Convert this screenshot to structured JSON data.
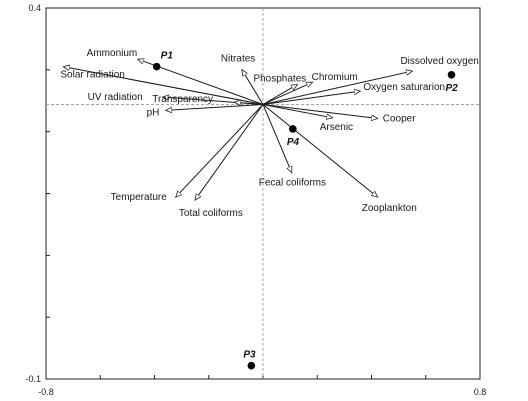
{
  "chart_data": {
    "type": "scatter",
    "title": "",
    "xlabel": "",
    "ylabel": "",
    "xlim": [
      -0.8,
      0.8
    ],
    "ylim": [
      -0.1,
      0.4
    ],
    "x_tick_labels": [
      "-0.8",
      "0.8"
    ],
    "y_tick_labels": [
      "0.4",
      "-0.1"
    ],
    "grid": false,
    "legend": "none",
    "reference_lines": {
      "x": 0.0,
      "y": 0.27
    },
    "vectors": [
      {
        "name": "Dissolved oxygen",
        "x": 0.551,
        "y": 0.315
      },
      {
        "name": "Oxygen saturarion",
        "x": 0.359,
        "y": 0.288
      },
      {
        "name": "Chromium",
        "x": 0.183,
        "y": 0.3
      },
      {
        "name": "Phosphates",
        "x": 0.127,
        "y": 0.297
      },
      {
        "name": "Nitrates",
        "x": -0.078,
        "y": 0.317
      },
      {
        "name": "Ammonium",
        "x": -0.462,
        "y": 0.331
      },
      {
        "name": "Solar radiation",
        "x": -0.736,
        "y": 0.321
      },
      {
        "name": "UV radiation",
        "x": -0.37,
        "y": 0.28
      },
      {
        "name": "Transparency",
        "x": -0.106,
        "y": 0.273
      },
      {
        "name": "pH",
        "x": -0.359,
        "y": 0.262
      },
      {
        "name": "Arsenic",
        "x": 0.257,
        "y": 0.252
      },
      {
        "name": "Cooper",
        "x": 0.423,
        "y": 0.251
      },
      {
        "name": "Fecal coliforms",
        "x": 0.106,
        "y": 0.178
      },
      {
        "name": "Zooplankton",
        "x": 0.423,
        "y": 0.145
      },
      {
        "name": "Temperature",
        "x": -0.322,
        "y": 0.145
      },
      {
        "name": "Total  coliforms",
        "x": -0.251,
        "y": 0.141
      }
    ],
    "points": [
      {
        "name": "P1",
        "x": -0.392,
        "y": 0.321
      },
      {
        "name": "P2",
        "x": 0.695,
        "y": 0.31
      },
      {
        "name": "P3",
        "x": -0.043,
        "y": -0.082
      },
      {
        "name": "P4",
        "x": 0.11,
        "y": 0.237
      }
    ]
  }
}
